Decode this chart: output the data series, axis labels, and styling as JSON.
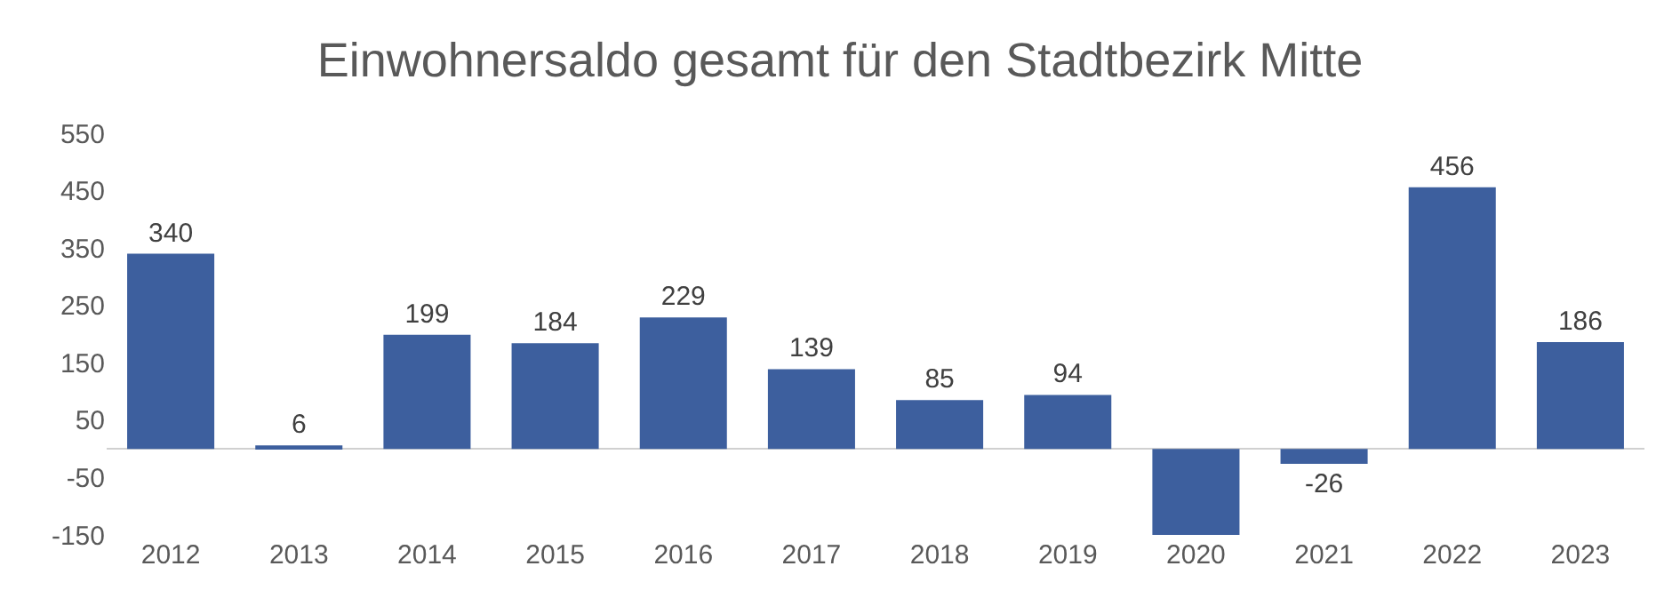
{
  "chart_data": {
    "type": "bar",
    "title": "Einwohnersaldo gesamt für den Stadtbezirk Mitte",
    "categories": [
      "2012",
      "2013",
      "2014",
      "2015",
      "2016",
      "2017",
      "2018",
      "2019",
      "2020",
      "2021",
      "2022",
      "2023"
    ],
    "values": [
      340,
      6,
      199,
      184,
      229,
      139,
      85,
      94,
      -150,
      -26,
      456,
      186
    ],
    "value_labels": [
      "340",
      "6",
      "199",
      "184",
      "229",
      "139",
      "85",
      "94",
      null,
      "-26",
      "456",
      "186"
    ],
    "color": "#3d5f9e",
    "ylim": [
      -150,
      550
    ],
    "yticks": [
      -150,
      -50,
      50,
      150,
      250,
      350,
      450,
      550
    ]
  }
}
